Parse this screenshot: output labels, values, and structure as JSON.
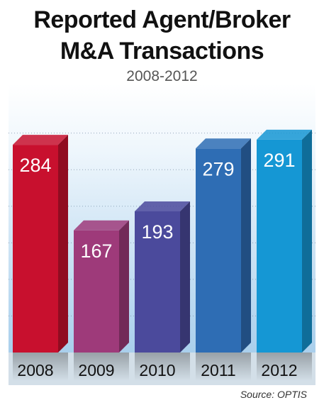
{
  "title_line1": "Reported Agent/Broker",
  "title_line2": "M&A Transactions",
  "subtitle": "2008-2012",
  "source": "Source: OPTIS",
  "chart_data": {
    "type": "bar",
    "categories": [
      "2008",
      "2009",
      "2010",
      "2011",
      "2012"
    ],
    "values": [
      284,
      167,
      193,
      279,
      291
    ],
    "value_labels": [
      "284",
      "167",
      "193",
      "279",
      "291"
    ],
    "ylim": [
      0,
      320
    ],
    "grid": true,
    "legend": "none",
    "colors": [
      "#c8102e",
      "#9e3a7a",
      "#4b4a9c",
      "#2e6db4",
      "#1597d4"
    ]
  }
}
